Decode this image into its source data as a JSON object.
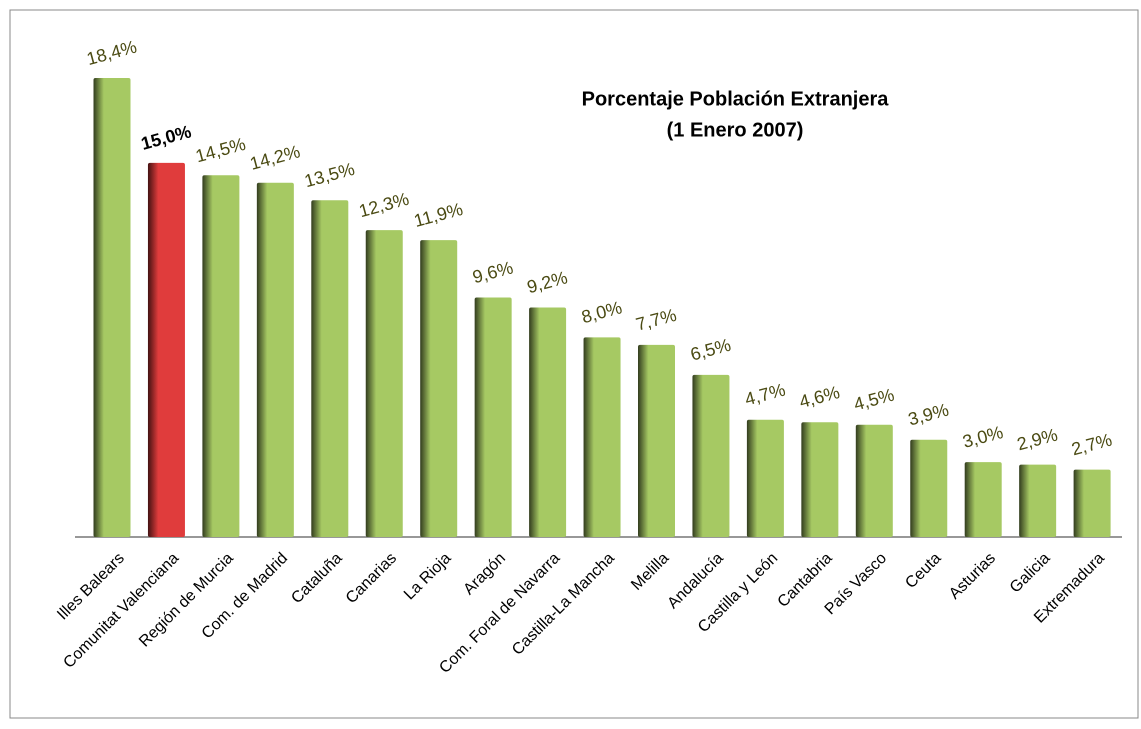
{
  "chart_data": {
    "type": "bar",
    "title": "Porcentaje Población Extranjera",
    "subtitle": "(1 Enero 2007)",
    "categories": [
      "Illes Balears",
      "Comunitat Valenciana",
      "Región de Murcia",
      "Com. de Madrid",
      "Cataluña",
      "Canarias",
      "La Rioja",
      "Aragón",
      "Com. Foral de Navarra",
      "Castilla-La Mancha",
      "Melilla",
      "Andalucía",
      "Castilla y León",
      "Cantabria",
      "País Vasco",
      "Ceuta",
      "Asturias",
      "Galicia",
      "Extremadura"
    ],
    "values": [
      18.4,
      15.0,
      14.5,
      14.2,
      13.5,
      12.3,
      11.9,
      9.6,
      9.2,
      8.0,
      7.7,
      6.5,
      4.7,
      4.6,
      4.5,
      3.9,
      3.0,
      2.9,
      2.7
    ],
    "value_labels": [
      "18,4%",
      "15,0%",
      "14,5%",
      "14,2%",
      "13,5%",
      "12,3%",
      "11,9%",
      "9,6%",
      "9,2%",
      "8,0%",
      "7,7%",
      "6,5%",
      "4,7%",
      "4,6%",
      "4,5%",
      "3,9%",
      "3,0%",
      "2,9%",
      "2,7%"
    ],
    "color": "#a6c963",
    "highlight": "Comunitat Valenciana",
    "highlight_color": "#e03c3c"
  }
}
